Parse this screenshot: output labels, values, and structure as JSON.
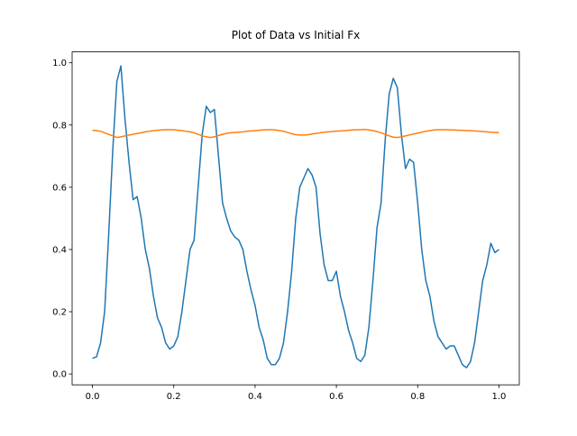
{
  "chart_data": {
    "type": "line",
    "title": "Plot of Data vs Initial Fx",
    "x": [
      0,
      0.01,
      0.02,
      0.03,
      0.04,
      0.05,
      0.06,
      0.07,
      0.08,
      0.09,
      0.1,
      0.11,
      0.12,
      0.13,
      0.14,
      0.15,
      0.16,
      0.17,
      0.18,
      0.19,
      0.2,
      0.21,
      0.22,
      0.23,
      0.24,
      0.25,
      0.26,
      0.27,
      0.28,
      0.29,
      0.3,
      0.31,
      0.32,
      0.33,
      0.34,
      0.35,
      0.36,
      0.37,
      0.38,
      0.39,
      0.4,
      0.41,
      0.42,
      0.43,
      0.44,
      0.45,
      0.46,
      0.47,
      0.48,
      0.49,
      0.5,
      0.51,
      0.52,
      0.53,
      0.54,
      0.55,
      0.56,
      0.57,
      0.58,
      0.59,
      0.6,
      0.61,
      0.62,
      0.63,
      0.64,
      0.65,
      0.66,
      0.67,
      0.68,
      0.69,
      0.7,
      0.71,
      0.72,
      0.73,
      0.74,
      0.75,
      0.76,
      0.77,
      0.78,
      0.79,
      0.8,
      0.81,
      0.82,
      0.83,
      0.84,
      0.85,
      0.86,
      0.87,
      0.88,
      0.89,
      0.9,
      0.91,
      0.92,
      0.93,
      0.94,
      0.95,
      0.96,
      0.97,
      0.98,
      0.99,
      1.0
    ],
    "series": [
      {
        "color": "#1f77b4",
        "values": [
          0.05,
          0.055,
          0.1,
          0.2,
          0.45,
          0.72,
          0.94,
          0.99,
          0.82,
          0.68,
          0.56,
          0.57,
          0.5,
          0.4,
          0.34,
          0.25,
          0.18,
          0.15,
          0.1,
          0.08,
          0.09,
          0.12,
          0.2,
          0.3,
          0.4,
          0.43,
          0.6,
          0.77,
          0.86,
          0.84,
          0.85,
          0.7,
          0.55,
          0.5,
          0.46,
          0.44,
          0.43,
          0.4,
          0.33,
          0.27,
          0.22,
          0.15,
          0.11,
          0.05,
          0.03,
          0.03,
          0.05,
          0.1,
          0.2,
          0.33,
          0.5,
          0.6,
          0.63,
          0.66,
          0.64,
          0.6,
          0.45,
          0.35,
          0.3,
          0.3,
          0.33,
          0.25,
          0.2,
          0.14,
          0.1,
          0.05,
          0.04,
          0.06,
          0.15,
          0.3,
          0.47,
          0.55,
          0.75,
          0.9,
          0.95,
          0.92,
          0.77,
          0.66,
          0.69,
          0.68,
          0.55,
          0.4,
          0.3,
          0.25,
          0.17,
          0.12,
          0.1,
          0.08,
          0.09,
          0.09,
          0.06,
          0.03,
          0.02,
          0.04,
          0.1,
          0.2,
          0.3,
          0.35,
          0.42,
          0.39,
          0.4
        ]
      },
      {
        "color": "#ff7f0e",
        "values": [
          0.783,
          0.782,
          0.78,
          0.775,
          0.77,
          0.765,
          0.76,
          0.762,
          0.765,
          0.768,
          0.77,
          0.773,
          0.775,
          0.778,
          0.78,
          0.782,
          0.783,
          0.784,
          0.785,
          0.785,
          0.785,
          0.783,
          0.782,
          0.78,
          0.778,
          0.775,
          0.77,
          0.765,
          0.762,
          0.76,
          0.762,
          0.766,
          0.77,
          0.773,
          0.775,
          0.776,
          0.777,
          0.778,
          0.78,
          0.781,
          0.782,
          0.783,
          0.784,
          0.785,
          0.785,
          0.784,
          0.782,
          0.78,
          0.776,
          0.772,
          0.769,
          0.768,
          0.768,
          0.769,
          0.771,
          0.773,
          0.775,
          0.777,
          0.778,
          0.779,
          0.78,
          0.781,
          0.782,
          0.783,
          0.784,
          0.785,
          0.785,
          0.786,
          0.784,
          0.782,
          0.779,
          0.775,
          0.77,
          0.765,
          0.761,
          0.76,
          0.762,
          0.765,
          0.768,
          0.771,
          0.774,
          0.777,
          0.78,
          0.782,
          0.784,
          0.785,
          0.785,
          0.785,
          0.784,
          0.784,
          0.783,
          0.783,
          0.782,
          0.782,
          0.781,
          0.78,
          0.779,
          0.778,
          0.777,
          0.776,
          0.775
        ]
      }
    ],
    "xlim": [
      -0.05,
      1.05
    ],
    "xticks": [
      {
        "value": 0,
        "label": "0.0"
      },
      0.2,
      0.4,
      0.6,
      0.8,
      {
        "value": 1,
        "label": "1.0"
      }
    ],
    "ylim": [
      -0.035,
      1.035
    ],
    "yticks": [
      {
        "value": 0,
        "label": "0.0"
      },
      0.2,
      0.4,
      0.6,
      0.8,
      {
        "value": 1,
        "label": "1.0"
      }
    ]
  }
}
